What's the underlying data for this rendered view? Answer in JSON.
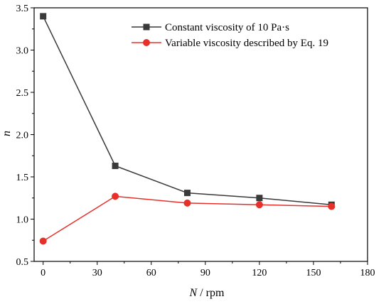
{
  "chart_data": {
    "type": "line",
    "x": [
      0,
      40,
      80,
      120,
      160
    ],
    "series": [
      {
        "name": "Constant viscosity of 10 Pa·s",
        "values": [
          3.4,
          1.63,
          1.31,
          1.25,
          1.17
        ],
        "color": "#3a3a3a",
        "marker": "square"
      },
      {
        "name": "Variable viscosity described by Eq. 19",
        "values": [
          0.74,
          1.27,
          1.19,
          1.17,
          1.15
        ],
        "color": "#e8302a",
        "marker": "circle"
      }
    ],
    "xlabel": {
      "var": "N",
      "unit": " / rpm"
    },
    "ylabel": "n",
    "xlim": [
      -5,
      180
    ],
    "ylim": [
      0.5,
      3.5
    ],
    "xticks": [
      0,
      30,
      60,
      90,
      120,
      150,
      180
    ],
    "yticks": [
      0.5,
      1.0,
      1.5,
      2.0,
      2.5,
      3.0,
      3.5
    ],
    "xtick_labels": [
      "0",
      "30",
      "60",
      "90",
      "120",
      "150",
      "180"
    ],
    "ytick_labels": [
      "0.5",
      "1.0",
      "1.5",
      "2.0",
      "2.5",
      "3.0",
      "3.5"
    ],
    "grid": false,
    "legend_position": "top-right"
  }
}
